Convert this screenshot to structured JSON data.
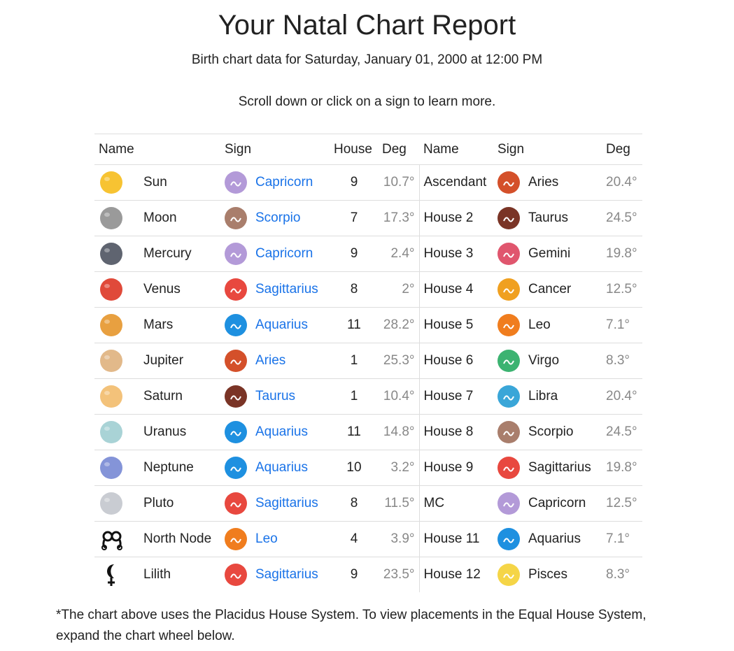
{
  "header": {
    "title": "Your Natal Chart Report",
    "subtitle": "Birth chart data for Saturday, January 01, 2000 at 12:00 PM",
    "instruction": "Scroll down or click on a sign to learn more."
  },
  "table": {
    "columns": [
      "Name",
      "Sign",
      "House",
      "Deg",
      "Name",
      "Sign",
      "Deg"
    ],
    "rows": [
      [
        "Sun",
        "Capricorn",
        9,
        "10.7°",
        "Ascendant",
        "Aries",
        "20.4°"
      ],
      [
        "Moon",
        "Scorpio",
        7,
        "17.3°",
        "House 2",
        "Taurus",
        "24.5°"
      ],
      [
        "Mercury",
        "Capricorn",
        9,
        "2.4°",
        "House 3",
        "Gemini",
        "19.8°"
      ],
      [
        "Venus",
        "Sagittarius",
        8,
        "2°",
        "House 4",
        "Cancer",
        "12.5°"
      ],
      [
        "Mars",
        "Aquarius",
        11,
        "28.2°",
        "House 5",
        "Leo",
        "7.1°"
      ],
      [
        "Jupiter",
        "Aries",
        1,
        "25.3°",
        "House 6",
        "Virgo",
        "8.3°"
      ],
      [
        "Saturn",
        "Taurus",
        1,
        "10.4°",
        "House 7",
        "Libra",
        "20.4°"
      ],
      [
        "Uranus",
        "Aquarius",
        11,
        "14.8°",
        "House 8",
        "Scorpio",
        "24.5°"
      ],
      [
        "Neptune",
        "Aquarius",
        10,
        "3.2°",
        "House 9",
        "Sagittarius",
        "19.8°"
      ],
      [
        "Pluto",
        "Sagittarius",
        8,
        "11.5°",
        "MC",
        "Capricorn",
        "12.5°"
      ],
      [
        "North Node",
        "Leo",
        4,
        "3.9°",
        "House 11",
        "Aquarius",
        "7.1°"
      ],
      [
        "Lilith",
        "Sagittarius",
        9,
        "23.5°",
        "House 12",
        "Pisces",
        "8.3°"
      ]
    ]
  },
  "footnote": "*The chart above uses the Placidus House System. To view placements in the Equal House System, expand the chart wheel below."
}
